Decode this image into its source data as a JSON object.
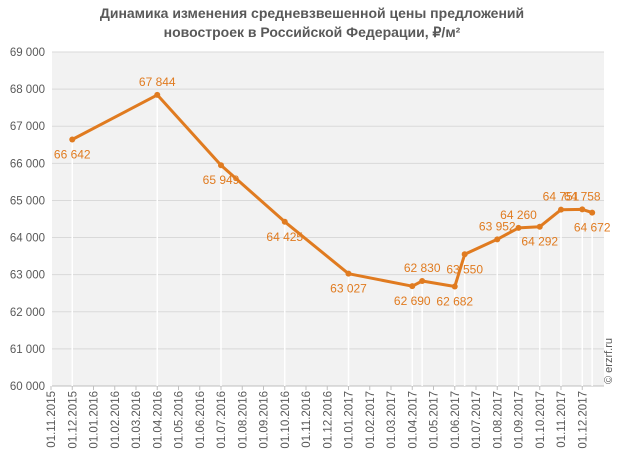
{
  "chart_data": {
    "type": "line",
    "title": [
      "Динамика изменения средневзвешенной цены предложений",
      "новостроек в Российской Федерации, ₽/м²"
    ],
    "xlabel": "",
    "ylabel": "",
    "ylim": [
      60000,
      69000
    ],
    "y_ticks": [
      "60 000",
      "61 000",
      "62 000",
      "63 000",
      "64 000",
      "65 000",
      "66 000",
      "67 000",
      "68 000",
      "69 000"
    ],
    "categories": [
      "01.11.2015",
      "01.12.2015",
      "01.01.2016",
      "01.02.2016",
      "01.03.2016",
      "01.04.2016",
      "01.05.2016",
      "01.06.2016",
      "01.07.2016",
      "01.08.2016",
      "01.09.2016",
      "01.10.2016",
      "01.11.2016",
      "01.12.2016",
      "01.01.2017",
      "01.02.2017",
      "01.03.2017",
      "01.04.2017",
      "01.05.2017",
      "01.06.2017",
      "01.07.2017",
      "01.08.2017",
      "01.09.2017",
      "01.10.2017",
      "01.11.2017",
      "01.12.2017"
    ],
    "points": [
      {
        "date": "01.12.2015",
        "value": 66642,
        "label": "66 642"
      },
      {
        "date": "01.04.2016",
        "value": 67844,
        "label": "67 844"
      },
      {
        "date": "01.07.2016",
        "value": 65949,
        "label": "65 949"
      },
      {
        "date": "01.10.2016",
        "value": 64425,
        "label": "64 425"
      },
      {
        "date": "01.01.2017",
        "value": 63027,
        "label": "63 027"
      },
      {
        "date": "01.04.2017",
        "value": 62690,
        "label": "62 690"
      },
      {
        "date": "15.04.2017",
        "value": 62830,
        "label": "62 830"
      },
      {
        "date": "01.06.2017",
        "value": 62682,
        "label": "62 682"
      },
      {
        "date": "15.06.2017",
        "value": 63550,
        "label": "63 550"
      },
      {
        "date": "01.08.2017",
        "value": 63952,
        "label": "63 952"
      },
      {
        "date": "01.09.2017",
        "value": 64260,
        "label": "64 260"
      },
      {
        "date": "01.10.2017",
        "value": 64292,
        "label": "64 292"
      },
      {
        "date": "01.11.2017",
        "value": 64751,
        "label": "64 751"
      },
      {
        "date": "01.12.2017",
        "value": 64758,
        "label": "64 758"
      },
      {
        "date": "15.12.2017",
        "value": 64672,
        "label": "64 672"
      }
    ],
    "grid": true,
    "legend": "none"
  },
  "credit": "© erzrf.ru",
  "colors": {
    "line": "#e07b20",
    "label": "#e07b20",
    "grid": "#d9d9d9",
    "plot_bg": "#f2f2f2",
    "text": "#595959"
  }
}
